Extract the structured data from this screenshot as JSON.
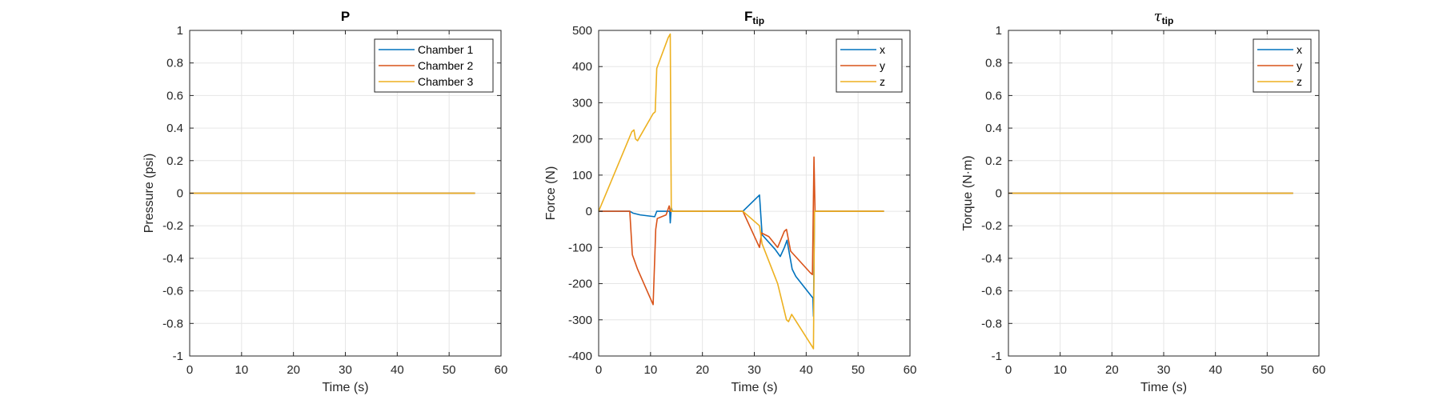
{
  "colors": {
    "blue": "#0072BD",
    "orange": "#D95319",
    "yellow": "#EDB120"
  },
  "chart_data": [
    {
      "type": "line",
      "title": "P",
      "xlabel": "Time (s)",
      "ylabel": "Pressure (psi)",
      "xlim": [
        0,
        60
      ],
      "ylim": [
        -1,
        1
      ],
      "xticks": [
        0,
        10,
        20,
        30,
        40,
        50,
        60
      ],
      "yticks": [
        -1,
        -0.8,
        -0.6,
        -0.4,
        -0.2,
        0,
        0.2,
        0.4,
        0.6,
        0.8,
        1
      ],
      "xtick_labels": [
        "0",
        "10",
        "20",
        "30",
        "40",
        "50",
        "60"
      ],
      "ytick_labels": [
        "-1",
        "-0.8",
        "-0.6",
        "-0.4",
        "-0.2",
        "0",
        "0.2",
        "0.4",
        "0.6",
        "0.8",
        "1"
      ],
      "grid": true,
      "legend_position": "top-right",
      "series": [
        {
          "name": "Chamber 1",
          "color": "#0072BD",
          "points": [
            [
              0,
              0
            ],
            [
              55,
              0
            ]
          ]
        },
        {
          "name": "Chamber 2",
          "color": "#D95319",
          "points": [
            [
              0,
              0
            ],
            [
              55,
              0
            ]
          ]
        },
        {
          "name": "Chamber 3",
          "color": "#EDB120",
          "points": [
            [
              0,
              0
            ],
            [
              55,
              0
            ]
          ]
        }
      ]
    },
    {
      "type": "line",
      "title": "F",
      "title_sub": "tip",
      "xlabel": "Time (s)",
      "ylabel": "Force (N)",
      "xlim": [
        0,
        60
      ],
      "ylim": [
        -400,
        500
      ],
      "xticks": [
        0,
        10,
        20,
        30,
        40,
        50,
        60
      ],
      "yticks": [
        -400,
        -300,
        -200,
        -100,
        0,
        100,
        200,
        300,
        400,
        500
      ],
      "xtick_labels": [
        "0",
        "10",
        "20",
        "30",
        "40",
        "50",
        "60"
      ],
      "ytick_labels": [
        "-400",
        "-300",
        "-200",
        "-100",
        "0",
        "100",
        "200",
        "300",
        "400",
        "500"
      ],
      "grid": true,
      "legend_position": "top-right",
      "series": [
        {
          "name": "x",
          "color": "#0072BD",
          "points": [
            [
              0,
              0
            ],
            [
              6,
              0
            ],
            [
              6.6,
              -5
            ],
            [
              8,
              -10
            ],
            [
              10.8,
              -15
            ],
            [
              11.2,
              0
            ],
            [
              13.7,
              0
            ],
            [
              13.8,
              -32
            ],
            [
              14,
              10
            ],
            [
              14.2,
              0
            ],
            [
              27.8,
              0
            ],
            [
              31,
              45
            ],
            [
              31.5,
              -65
            ],
            [
              34,
              -105
            ],
            [
              35,
              -125
            ],
            [
              35.8,
              -100
            ],
            [
              36.3,
              -80
            ],
            [
              36.8,
              -120
            ],
            [
              37.3,
              -160
            ],
            [
              38,
              -180
            ],
            [
              41.3,
              -240
            ],
            [
              41.4,
              -290
            ],
            [
              41.6,
              0
            ],
            [
              55,
              0
            ]
          ]
        },
        {
          "name": "y",
          "color": "#D95319",
          "points": [
            [
              0,
              0
            ],
            [
              6,
              0
            ],
            [
              6.5,
              -120
            ],
            [
              7.5,
              -160
            ],
            [
              10.5,
              -258
            ],
            [
              11,
              -50
            ],
            [
              11.3,
              -20
            ],
            [
              13,
              -10
            ],
            [
              13.6,
              15
            ],
            [
              13.8,
              0
            ],
            [
              27.8,
              0
            ],
            [
              31,
              -100
            ],
            [
              31.4,
              -60
            ],
            [
              32.8,
              -70
            ],
            [
              34.5,
              -100
            ],
            [
              35.8,
              -55
            ],
            [
              36.2,
              -50
            ],
            [
              37,
              -110
            ],
            [
              40.8,
              -170
            ],
            [
              41.2,
              -175
            ],
            [
              41.5,
              150
            ],
            [
              41.7,
              0
            ],
            [
              55,
              0
            ]
          ]
        },
        {
          "name": "z",
          "color": "#EDB120",
          "points": [
            [
              0,
              0
            ],
            [
              6.4,
              220
            ],
            [
              6.8,
              225
            ],
            [
              7.1,
              200
            ],
            [
              7.5,
              195
            ],
            [
              10.5,
              270
            ],
            [
              10.9,
              275
            ],
            [
              11.2,
              395
            ],
            [
              13.4,
              480
            ],
            [
              13.8,
              490
            ],
            [
              14,
              0
            ],
            [
              27.8,
              0
            ],
            [
              31,
              -40
            ],
            [
              31.5,
              -90
            ],
            [
              34.5,
              -200
            ],
            [
              36.2,
              -300
            ],
            [
              36.6,
              -305
            ],
            [
              37.2,
              -285
            ],
            [
              41.2,
              -375
            ],
            [
              41.4,
              -380
            ],
            [
              41.6,
              0
            ],
            [
              55,
              0
            ]
          ]
        }
      ]
    },
    {
      "type": "line",
      "title": "τ",
      "title_sub": "tip",
      "xlabel": "Time (s)",
      "ylabel": "Torque (N·m)",
      "xlim": [
        0,
        60
      ],
      "ylim": [
        -1,
        1
      ],
      "xticks": [
        0,
        10,
        20,
        30,
        40,
        50,
        60
      ],
      "yticks": [
        -1,
        -0.8,
        -0.6,
        -0.4,
        -0.2,
        0,
        0.2,
        0.4,
        0.6,
        0.8,
        1
      ],
      "xtick_labels": [
        "0",
        "10",
        "20",
        "30",
        "40",
        "50",
        "60"
      ],
      "ytick_labels": [
        "-1",
        "-0.8",
        "-0.6",
        "-0.4",
        "-0.2",
        "0",
        "0.2",
        "0.4",
        "0.6",
        "0.8",
        "1"
      ],
      "grid": true,
      "legend_position": "top-right",
      "series": [
        {
          "name": "x",
          "color": "#0072BD",
          "points": [
            [
              0,
              0
            ],
            [
              55,
              0
            ]
          ]
        },
        {
          "name": "y",
          "color": "#D95319",
          "points": [
            [
              0,
              0
            ],
            [
              55,
              0
            ]
          ]
        },
        {
          "name": "z",
          "color": "#EDB120",
          "points": [
            [
              0,
              0
            ],
            [
              55,
              0
            ]
          ]
        }
      ]
    }
  ]
}
